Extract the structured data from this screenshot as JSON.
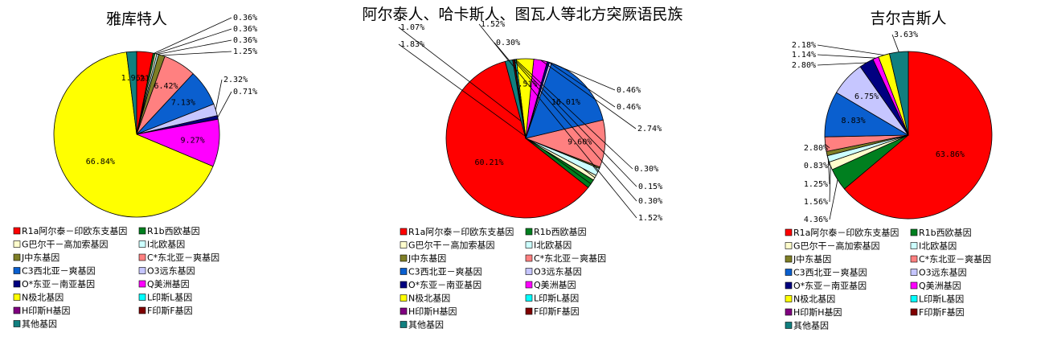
{
  "legend_items": [
    "R1a阿尔泰－印欧东支基因",
    "R1b西欧基因",
    "G巴尔干－高加索基因",
    "I北欧基因",
    "J中东基因",
    "C*东北亚－爽基因",
    "C3西北亚－爽基因",
    "O3远东基因",
    "O*东亚－南亚基因",
    "Q美洲基因",
    "N极北基因",
    "L印斯L基因",
    "H印斯H基因",
    "F印斯F基因",
    "其他基因"
  ],
  "colors": [
    "#ff0000",
    "#007f1f",
    "#fffdcc",
    "#ccffff",
    "#7f7f26",
    "#ff8080",
    "#0a5fcf",
    "#c6c6ff",
    "#000080",
    "#ff00ff",
    "#ffff00",
    "#00ffff",
    "#800080",
    "#800000",
    "#117f7f"
  ],
  "chart_data": [
    {
      "type": "pie",
      "title": "雅库特人",
      "slices": [
        {
          "category": "R1a阿尔泰－印欧东支基因",
          "value": 3.21,
          "label": "3.21%"
        },
        {
          "category": "R1b西欧基因",
          "value": 0.36,
          "label": "0.36%"
        },
        {
          "category": "G巴尔干－高加索基因",
          "value": 0.36,
          "label": "0.36%"
        },
        {
          "category": "I北欧基因",
          "value": 0.36,
          "label": "0.36%"
        },
        {
          "category": "J中东基因",
          "value": 1.25,
          "label": "1.25%"
        },
        {
          "category": "C*东北亚－爽基因",
          "value": 6.42,
          "label": "6.42%"
        },
        {
          "category": "C3西北亚－爽基因",
          "value": 7.13,
          "label": "7.13%"
        },
        {
          "category": "O3远东基因",
          "value": 2.32,
          "label": "2.32%"
        },
        {
          "category": "O*东亚－南亚基因",
          "value": 0.71,
          "label": "0.71%"
        },
        {
          "category": "Q美洲基因",
          "value": 9.27,
          "label": "9.27%"
        },
        {
          "category": "N极北基因",
          "value": 66.84,
          "label": "66.84%"
        },
        {
          "category": "其他基因",
          "value": 1.96,
          "label": "1.96%"
        }
      ]
    },
    {
      "type": "pie",
      "title": "阿尔泰人、哈卡斯人、图瓦人等北方突厥语民族",
      "slices": [
        {
          "category": "R1a阿尔泰－印欧东支基因",
          "value": 60.21,
          "label": "60.21%"
        },
        {
          "category": "R1b西欧基因",
          "value": 1.83,
          "label": "1.83%"
        },
        {
          "category": "G巴尔干－高加索基因",
          "value": 1.07,
          "label": "1.07%"
        },
        {
          "category": "I北欧基因",
          "value": 1.52,
          "label": "1.52%"
        },
        {
          "category": "J中东基因",
          "value": 0.3,
          "label": "0.30%"
        },
        {
          "category": "C*东北亚－爽基因",
          "value": 9.6,
          "label": "9.60%"
        },
        {
          "category": "C3西北亚－爽基因",
          "value": 16.01,
          "label": "16.01%"
        },
        {
          "category": "O3远东基因",
          "value": 0.46,
          "label": "0.46%"
        },
        {
          "category": "O*东亚－南亚基因",
          "value": 0.46,
          "label": "0.46%"
        },
        {
          "category": "Q美洲基因",
          "value": 2.74,
          "label": "2.74%"
        },
        {
          "category": "N极北基因",
          "value": 3.51,
          "label": "3.51%"
        },
        {
          "category": "L印斯L基因",
          "value": 0.3,
          "label": "0.30%"
        },
        {
          "category": "H印斯H基因",
          "value": 0.15,
          "label": "0.15%"
        },
        {
          "category": "F印斯F基因",
          "value": 0.3,
          "label": "0.30%"
        },
        {
          "category": "其他基因",
          "value": 1.52,
          "label": "1.52%"
        }
      ]
    },
    {
      "type": "pie",
      "title": "吉尔吉斯人",
      "slices": [
        {
          "category": "R1a阿尔泰－印欧东支基因",
          "value": 63.86,
          "label": "63.86%"
        },
        {
          "category": "R1b西欧基因",
          "value": 4.36,
          "label": "4.36%"
        },
        {
          "category": "G巴尔干－高加索基因",
          "value": 1.56,
          "label": "1.56%"
        },
        {
          "category": "I北欧基因",
          "value": 1.25,
          "label": "1.25%"
        },
        {
          "category": "J中东基因",
          "value": 0.83,
          "label": "0.83%"
        },
        {
          "category": "C*东北亚－爽基因",
          "value": 2.8,
          "label": "2.80%"
        },
        {
          "category": "C3西北亚－爽基因",
          "value": 8.83,
          "label": "8.83%"
        },
        {
          "category": "O3远东基因",
          "value": 6.75,
          "label": "6.75%"
        },
        {
          "category": "O*东亚－南亚基因",
          "value": 2.8,
          "label": "2.80%"
        },
        {
          "category": "Q美洲基因",
          "value": 1.14,
          "label": "1.14%"
        },
        {
          "category": "N极北基因",
          "value": 2.18,
          "label": "2.18%"
        },
        {
          "category": "其他基因",
          "value": 3.63,
          "label": "3.63%"
        }
      ]
    }
  ]
}
